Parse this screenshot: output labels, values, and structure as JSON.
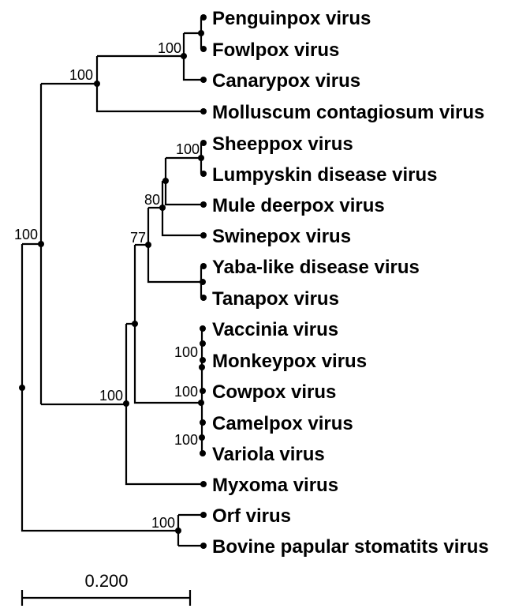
{
  "taxa": [
    "Penguinpox virus",
    "Fowlpox virus",
    "Canarypox virus",
    "Molluscum contagiosum virus",
    "Sheeppox virus",
    "Lumpyskin disease virus",
    "Mule deerpox virus",
    "Swinepox virus",
    "Yaba-like disease virus",
    "Tanapox virus",
    "Vaccinia virus",
    "Monkeypox virus",
    "Cowpox virus",
    "Camelpox virus",
    "Variola virus",
    "Myxoma virus",
    "Orf virus",
    "Bovine papular stomatits virus"
  ],
  "bootstrap": {
    "avipox": "100",
    "avipox_molluscum": "100",
    "chordopox_main": "100",
    "capripox": "100",
    "capri_mule_swine": "80",
    "with_yatapox": "77",
    "vaccinia_monkeypox": "100",
    "cowpox": "100",
    "camelpox_variola": "100",
    "with_myxoma": "100",
    "parapox": "100"
  },
  "scale_bar": {
    "label": "0.200",
    "value": 0.2
  }
}
